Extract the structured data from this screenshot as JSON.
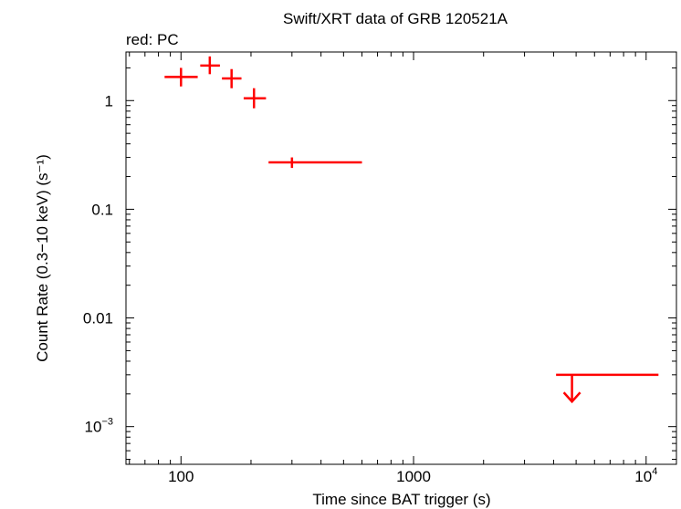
{
  "chart_data": {
    "type": "scatter",
    "title": "Swift/XRT data of GRB 120521A",
    "subtitle": "red: PC",
    "xlabel": "Time since BAT trigger (s)",
    "ylabel": "Count Rate (0.3−10 keV) (s⁻¹)",
    "xscale": "log",
    "yscale": "log",
    "xlim": [
      58,
      13500
    ],
    "ylim": [
      0.00045,
      2.8
    ],
    "grid": false,
    "x_ticks": [
      {
        "value": 100,
        "label": "100"
      },
      {
        "value": 1000,
        "label": "1000"
      },
      {
        "value": 10000,
        "label": "10",
        "sup": "4"
      }
    ],
    "y_ticks": [
      {
        "value": 1,
        "label": "1"
      },
      {
        "value": 0.1,
        "label": "0.1"
      },
      {
        "value": 0.01,
        "label": "0.01"
      },
      {
        "value": 0.001,
        "label": "10",
        "sup": "−3"
      }
    ],
    "series": [
      {
        "name": "PC",
        "color": "#ff0000",
        "points": [
          {
            "x": 100,
            "xlo": 85,
            "xhi": 118,
            "y": 1.65,
            "ylo": 1.35,
            "yhi": 2.0
          },
          {
            "x": 133,
            "xlo": 121,
            "xhi": 147,
            "y": 2.1,
            "ylo": 1.75,
            "yhi": 2.55
          },
          {
            "x": 165,
            "xlo": 150,
            "xhi": 182,
            "y": 1.6,
            "ylo": 1.3,
            "yhi": 1.95
          },
          {
            "x": 206,
            "xlo": 186,
            "xhi": 232,
            "y": 1.05,
            "ylo": 0.85,
            "yhi": 1.3
          },
          {
            "x": 300,
            "xlo": 238,
            "xhi": 600,
            "y": 0.27,
            "ylo": 0.24,
            "yhi": 0.3
          }
        ],
        "upper_limits": [
          {
            "x": 4800,
            "xlo": 4100,
            "xhi": 11300,
            "y": 0.003,
            "arrow_to": 0.0017
          }
        ]
      }
    ]
  }
}
